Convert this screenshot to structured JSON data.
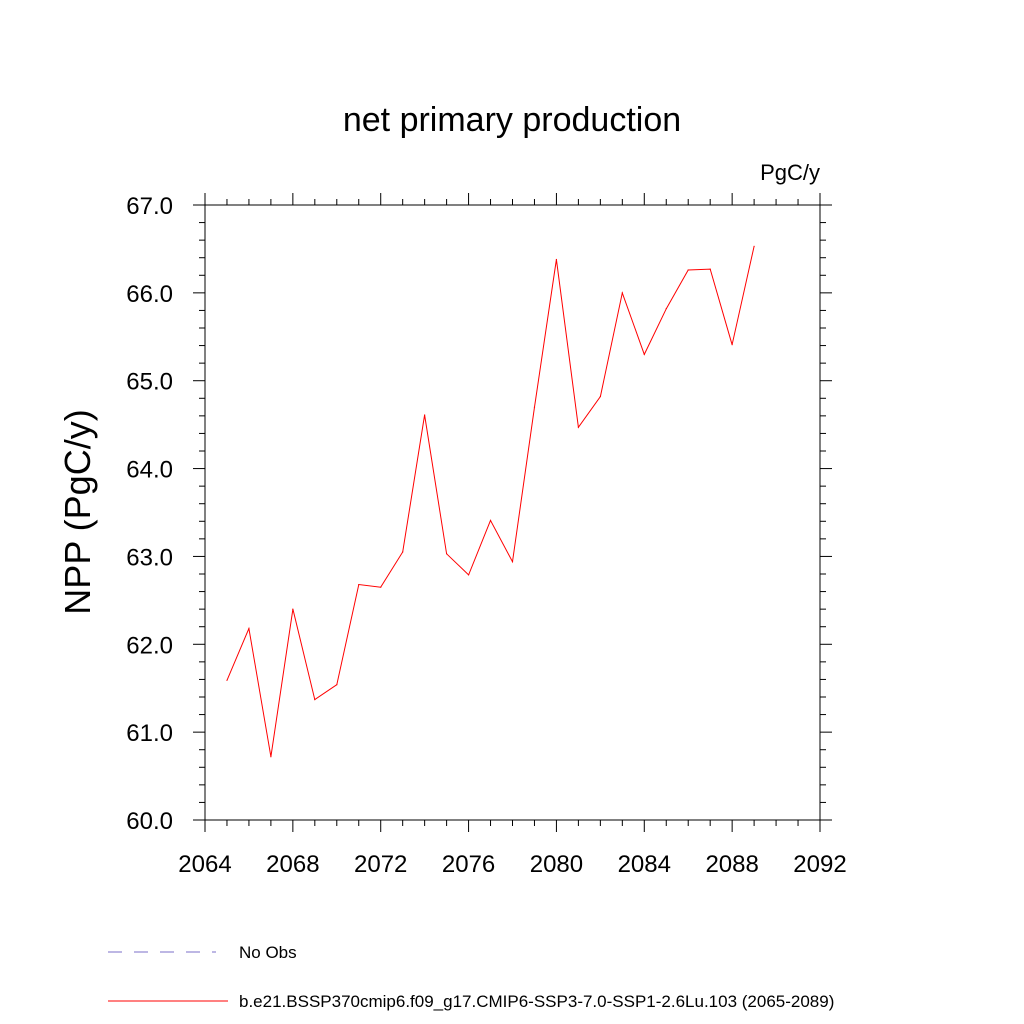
{
  "chart_data": {
    "type": "line",
    "title": "net primary production",
    "units_label": "PgC/y",
    "xlabel": "",
    "ylabel": "NPP  (PgC/y)",
    "xlim": [
      2064,
      2092
    ],
    "ylim": [
      60.0,
      67.0
    ],
    "x_ticks": [
      "2064",
      "2068",
      "2072",
      "2076",
      "2080",
      "2084",
      "2088",
      "2092"
    ],
    "y_ticks": [
      "60.0",
      "61.0",
      "62.0",
      "63.0",
      "64.0",
      "65.0",
      "66.0",
      "67.0"
    ],
    "grid": false,
    "legend_position": "bottom",
    "series": [
      {
        "name": "b.e21.BSSP370cmip6.f09_g17.CMIP6-SSP3-7.0-SSP1-2.6Lu.103 (2065-2089)",
        "color": "#ff0000",
        "line_style": "solid",
        "x": [
          2065,
          2066,
          2067,
          2068,
          2069,
          2070,
          2071,
          2072,
          2073,
          2074,
          2075,
          2076,
          2077,
          2078,
          2079,
          2080,
          2081,
          2082,
          2083,
          2084,
          2085,
          2086,
          2087,
          2088,
          2089
        ],
        "y": [
          61.59,
          62.18,
          60.72,
          62.4,
          61.37,
          61.54,
          62.68,
          62.65,
          63.05,
          64.61,
          63.03,
          62.79,
          63.41,
          62.94,
          64.7,
          66.38,
          64.47,
          64.82,
          66.0,
          65.3,
          65.82,
          66.26,
          66.27,
          65.41,
          66.53
        ]
      }
    ],
    "legend": [
      {
        "label": "No Obs",
        "color": "#7b6fc8",
        "line_style": "dashed"
      },
      {
        "label": "b.e21.BSSP370cmip6.f09_g17.CMIP6-SSP3-7.0-SSP1-2.6Lu.103 (2065-2089)",
        "color": "#ff0000",
        "line_style": "solid"
      }
    ]
  }
}
